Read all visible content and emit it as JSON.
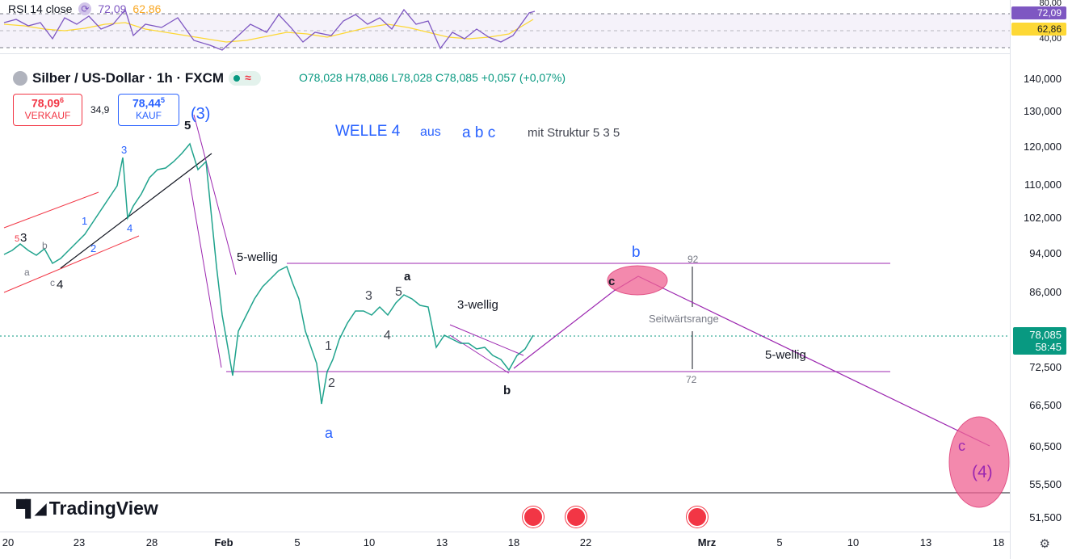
{
  "rsi": {
    "label": "RSI 14 close",
    "value1": "72,09",
    "value2": "62,86",
    "scale_top": "80,00",
    "scale_bottom": "40,00",
    "tag_rsi": "72,09",
    "tag_ma": "62,86"
  },
  "symbol": {
    "title": "Silber / US-Dollar · 1h · FXCM",
    "open": "O78,028",
    "high": "H78,086",
    "low": "L78,028",
    "close": "C78,085",
    "change": "+0,057 (+0,07%)"
  },
  "trade": {
    "sell_price": "78,09",
    "sell_price_sup": "6",
    "sell_label": "VERKAUF",
    "spread": "34,9",
    "buy_price": "78,44",
    "buy_price_sup": "5",
    "buy_label": "KAUF"
  },
  "price_scale": [
    "140,000",
    "130,000",
    "120,000",
    "110,000",
    "102,000",
    "94,000",
    "86,000",
    "72,500",
    "66,500",
    "60,500",
    "55,500",
    "51,500"
  ],
  "last_price": {
    "price": "78,085",
    "countdown": "58:45"
  },
  "time_axis": [
    "20",
    "23",
    "28",
    "Feb",
    "5",
    "10",
    "13",
    "18",
    "22",
    "Mrz",
    "5",
    "10",
    "13",
    "18"
  ],
  "annotations": {
    "headline_1": "WELLE 4",
    "headline_2": "aus",
    "headline_3": "a b c",
    "headline_4": "mit Struktur  5 3 5",
    "wave3": "(3)",
    "five_top": "5",
    "fuenf_wellig_1": "5-wellig",
    "drei_wellig": "3-wellig",
    "fuenf_wellig_2": "5-wellig",
    "seitwaerts": "Seitwärtsrange",
    "range_top": "92",
    "range_bottom": "72",
    "a_blue": "a",
    "a_black": "a",
    "b_black": "b",
    "b_blue": "b",
    "c_black": "c",
    "c_purple": "c",
    "wave4": "(4)",
    "n1": "1",
    "n2": "2",
    "n3": "3",
    "n4": "4",
    "n5": "5",
    "m1": "1",
    "m2": "2",
    "m3": "3",
    "m4": "4",
    "s3": "3",
    "s4": "4",
    "sa": "a",
    "sb": "b",
    "sc": "c",
    "s5": "5"
  },
  "brand": {
    "logo": "TradingView"
  },
  "colors": {
    "up": "#089981",
    "down": "#f23645",
    "purple": "#9c27b0",
    "blue": "#2962ff",
    "rsi": "#7e57c2",
    "ma": "#fdd835"
  }
}
